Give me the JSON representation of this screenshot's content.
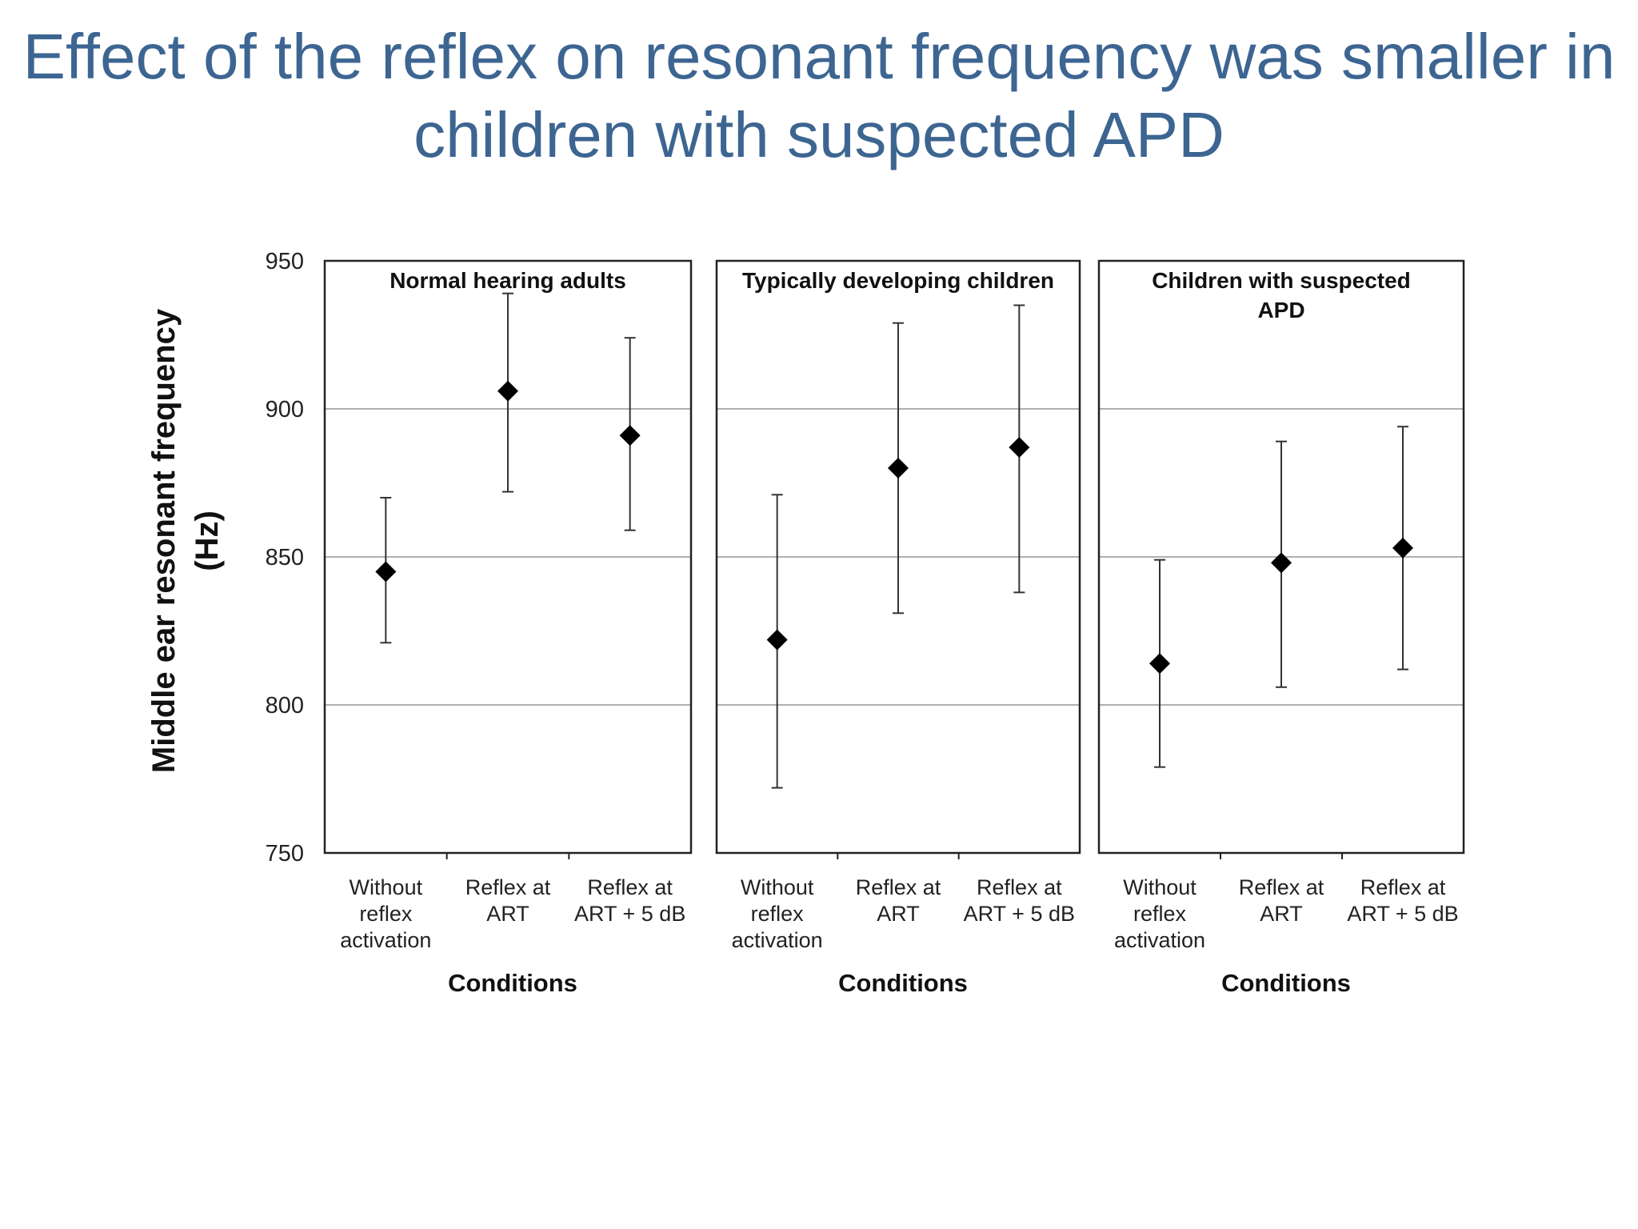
{
  "slide": {
    "title_lines": [
      "Effect of the reflex on resonant frequency was smaller in",
      "children with suspected APD"
    ]
  },
  "chart_data": {
    "type": "scatter",
    "subtype": "mean-with-error-bars",
    "ylabel_lines": [
      "Middle ear resonant  frequency",
      "(Hz)"
    ],
    "ylim": [
      750,
      950
    ],
    "yticks": [
      750,
      800,
      850,
      900,
      950
    ],
    "grid": "horizontal",
    "categories": [
      [
        "Without",
        "reflex",
        "activation"
      ],
      [
        "Reflex at",
        "ART"
      ],
      [
        "Reflex at",
        "ART + 5 dB"
      ]
    ],
    "xlabel": "Conditions",
    "marker": "diamond",
    "marker_color": "#000000",
    "panels": [
      {
        "title_lines": [
          "Normal hearing adults"
        ],
        "means": [
          845,
          906,
          891
        ],
        "lower": [
          821,
          872,
          859
        ],
        "upper": [
          870,
          939,
          924
        ]
      },
      {
        "title_lines": [
          "Typically developing children"
        ],
        "means": [
          822,
          880,
          887
        ],
        "lower": [
          772,
          831,
          838
        ],
        "upper": [
          871,
          929,
          935
        ]
      },
      {
        "title_lines": [
          "Children with suspected",
          "APD"
        ],
        "means": [
          814,
          848,
          853
        ],
        "lower": [
          779,
          806,
          812
        ],
        "upper": [
          849,
          889,
          894
        ]
      }
    ]
  }
}
